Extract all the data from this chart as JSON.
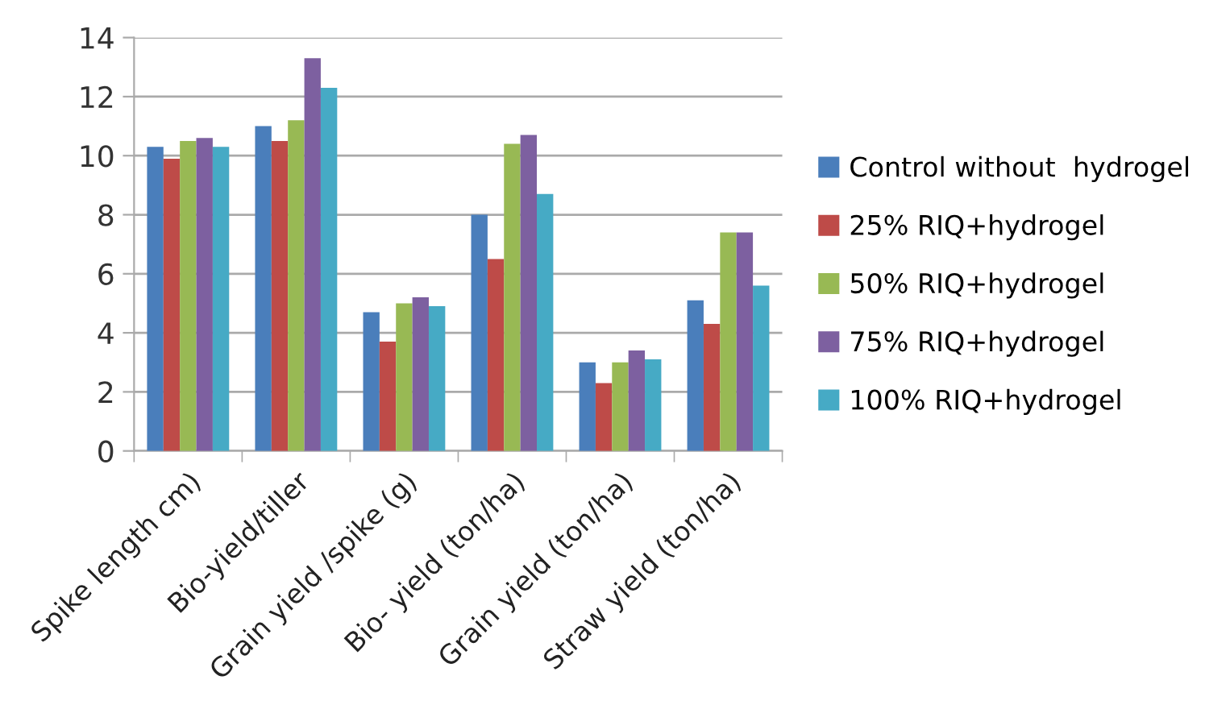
{
  "chart_data": {
    "type": "bar",
    "categories": [
      "Spike length cm)",
      "Bio-yield/tiller",
      "Grain yield /spike (g)",
      "Bio- yield (ton/ha)",
      "Grain yield (ton/ha)",
      "Straw yield (ton/ha)"
    ],
    "series": [
      {
        "name": "Control without  hydrogel",
        "color": "#4a7ebb",
        "values": [
          10.3,
          11.0,
          4.7,
          8.0,
          3.0,
          5.1
        ]
      },
      {
        "name": "25% RIQ+hydrogel",
        "color": "#be4b48",
        "values": [
          9.9,
          10.5,
          3.7,
          6.5,
          2.3,
          4.3
        ]
      },
      {
        "name": "50% RIQ+hydrogel",
        "color": "#98b954",
        "values": [
          10.5,
          11.2,
          5.0,
          10.4,
          3.0,
          7.4
        ]
      },
      {
        "name": "75% RIQ+hydrogel",
        "color": "#7d60a0",
        "values": [
          10.6,
          13.3,
          5.2,
          10.7,
          3.4,
          7.4
        ]
      },
      {
        "name": "100% RIQ+hydrogel",
        "color": "#46aac5",
        "values": [
          10.3,
          12.3,
          4.9,
          8.7,
          3.1,
          5.6
        ]
      }
    ],
    "ylim": [
      0,
      14
    ],
    "yticks": [
      0,
      2,
      4,
      6,
      8,
      10,
      12,
      14
    ],
    "grid": "y",
    "legend": "right"
  }
}
